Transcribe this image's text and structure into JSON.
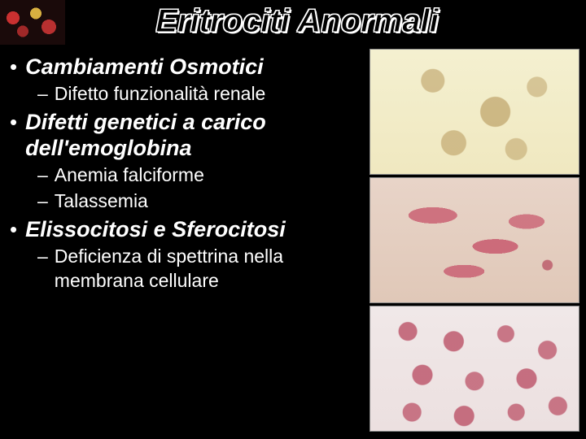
{
  "title": "Eritrociti Anormali",
  "bullets": [
    {
      "label": "Cambiamenti Osmotici",
      "subs": [
        "Difetto funzionalità renale"
      ]
    },
    {
      "label": "Difetti genetici a carico dell'emoglobina",
      "subs": [
        "Anemia falciforme",
        "Talassemia"
      ]
    },
    {
      "label": "Elissocitosi e Sferocitosi",
      "subs": [
        "Deficienza di spettrina nella membrana cellulare"
      ]
    }
  ],
  "colors": {
    "background": "#000000",
    "text": "#ffffff",
    "title_outline": "#ffffff"
  },
  "typography": {
    "title_fontsize": 40,
    "bullet_fontsize": 27,
    "sub_fontsize": 23,
    "font_family": "Comic Sans MS"
  },
  "images": [
    {
      "name": "crenated-cells",
      "bg": "#f4f0d0"
    },
    {
      "name": "sickle-cells",
      "bg": "#e8d4c8"
    },
    {
      "name": "spherocytes",
      "bg": "#f0e8e8"
    }
  ]
}
